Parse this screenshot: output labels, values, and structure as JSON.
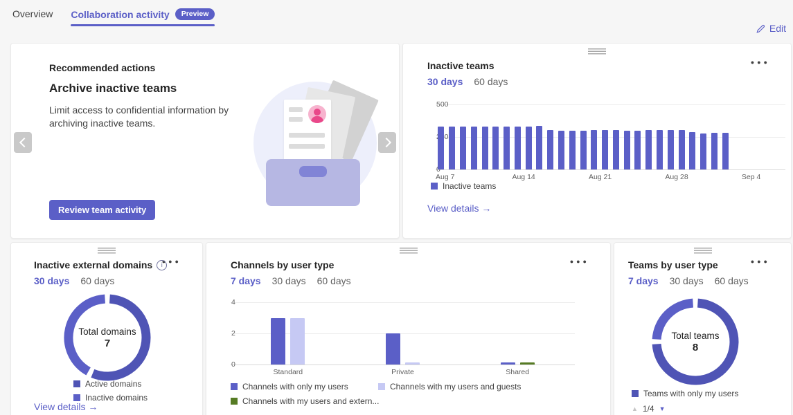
{
  "page": {
    "tabs": [
      {
        "label": "Overview",
        "active": false
      },
      {
        "label": "Collaboration activity",
        "active": true,
        "badge": "Preview"
      }
    ],
    "edit_label": "Edit"
  },
  "colors": {
    "accent": "#5b5fc7",
    "bar_primary": "#5b5fc7",
    "bar_light": "#c6c9f4",
    "bar_green": "#567b24",
    "donut_primary": "#4f54b5",
    "donut_secondary": "#5b5fc7"
  },
  "recommended_card": {
    "header": "Recommended actions",
    "title": "Archive inactive teams",
    "description": "Limit access to confidential information by archiving inactive teams.",
    "button_label": "Review team activity"
  },
  "inactive_teams_card": {
    "title": "Inactive teams",
    "ranges": [
      "30 days",
      "60 days"
    ],
    "active_range": 0,
    "view_details": "View details →"
  },
  "domains_card": {
    "title": "Inactive external domains",
    "ranges": [
      "30 days",
      "60 days"
    ],
    "active_range": 0,
    "view_details": "View details →"
  },
  "channels_card": {
    "title": "Channels by user type",
    "ranges": [
      "7 days",
      "30 days",
      "60 days"
    ],
    "active_range": 0
  },
  "teams_card": {
    "title": "Teams by user type",
    "ranges": [
      "7 days",
      "30 days",
      "60 days"
    ],
    "active_range": 0,
    "pagination": "1/4"
  },
  "chart_data": [
    {
      "id": "inactive-teams-bar",
      "type": "bar",
      "title": "Inactive teams",
      "ylim": [
        0,
        500
      ],
      "yticks": [
        0,
        250,
        500
      ],
      "axis_slots": 32,
      "x_ticks": [
        {
          "label": "Aug 7",
          "pos": 0
        },
        {
          "label": "Aug 14",
          "pos": 7
        },
        {
          "label": "Aug 21",
          "pos": 14
        },
        {
          "label": "Aug 28",
          "pos": 21
        },
        {
          "label": "Sep 4",
          "pos": 28
        }
      ],
      "series": [
        {
          "name": "Inactive teams",
          "color": "#5b5fc7",
          "values": [
            330,
            332,
            332,
            332,
            331,
            330,
            331,
            331,
            332,
            333,
            305,
            300,
            300,
            300,
            302,
            304,
            304,
            300,
            298,
            301,
            301,
            304,
            302,
            288,
            278,
            280,
            283
          ]
        }
      ]
    },
    {
      "id": "channels-by-user-type",
      "type": "grouped-bar",
      "title": "Channels by user type",
      "categories": [
        "Standard",
        "Private",
        "Shared"
      ],
      "ylim": [
        0,
        4
      ],
      "yticks": [
        0,
        2,
        4
      ],
      "series": [
        {
          "name": "Channels with only my users",
          "color": "#5b5fc7",
          "values": [
            3,
            2,
            0
          ]
        },
        {
          "name": "Channels with my users and guests",
          "color": "#c6c9f4",
          "values": [
            3,
            0,
            null
          ]
        },
        {
          "name": "Channels with my users and extern...",
          "color": "#567b24",
          "values": [
            null,
            null,
            0
          ]
        }
      ]
    },
    {
      "id": "inactive-external-domains-donut",
      "type": "donut",
      "center_label": "Total domains",
      "center_value": 7,
      "segments": [
        {
          "name": "Active domains",
          "color": "#4f54b5",
          "value": 4
        },
        {
          "name": "Inactive domains",
          "color": "#5b5fc7",
          "value": 3
        }
      ]
    },
    {
      "id": "teams-by-user-type-donut",
      "type": "donut",
      "center_label": "Total teams",
      "center_value": 8,
      "segments": [
        {
          "name": "Teams with only my users",
          "color": "#4f54b5",
          "value": 6
        },
        {
          "name": "",
          "color": "#5b5fc7",
          "value": 2
        }
      ]
    }
  ]
}
